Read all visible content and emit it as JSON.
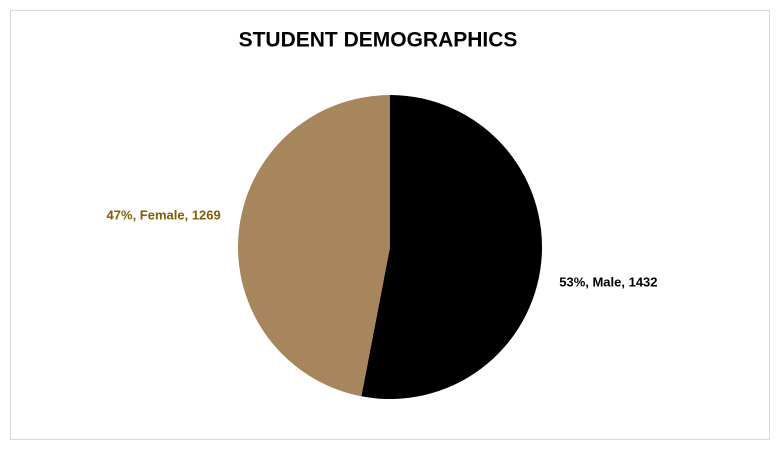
{
  "chart_data": {
    "type": "pie",
    "title": "STUDENT DEMOGRAPHICS",
    "values": [
      1432,
      1269
    ],
    "value_labels": [
      "53%, Male, 1432",
      "47%, Female, 1269"
    ],
    "colors": [
      "#000000",
      "#a6865a"
    ],
    "label_colors": [
      "#000000",
      "#7f6000"
    ]
  }
}
